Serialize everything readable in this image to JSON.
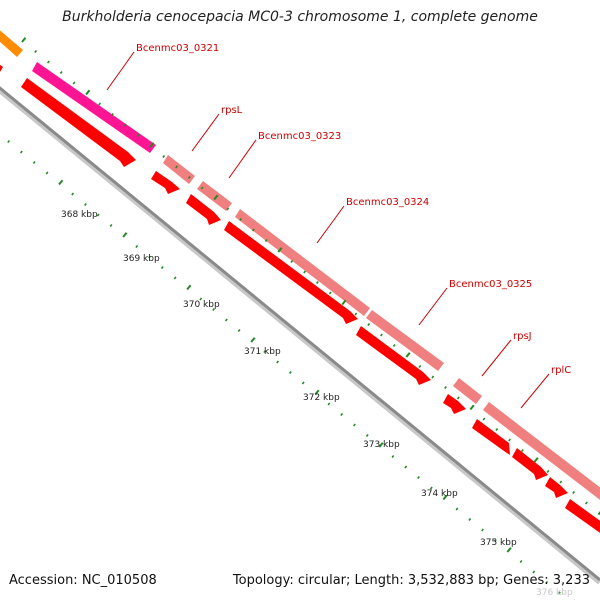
{
  "title": "Burkholderia cenocepacia MC0-3 chromosome 1, complete genome",
  "footer": {
    "accession": "Accession: NC_010508",
    "topology": "Topology: circular; Length: 3,532,883 bp; Genes: 3,233"
  },
  "gene_labels": [
    "Bcenmc03_0321",
    "rpsL",
    "Bcenmc03_0323",
    "Bcenmc03_0324",
    "Bcenmc03_0325",
    "rpsJ",
    "rplC"
  ],
  "ruler_labels": [
    "368 kbp",
    "369 kbp",
    "370 kbp",
    "371 kbp",
    "372 kbp",
    "373 kbp",
    "374 kbp",
    "375 kbp",
    "376 kbp"
  ],
  "colors": {
    "backbone": "#8a8a8a",
    "gene_forward": "#ff0000",
    "feature_pink": "#f08080",
    "feature_magenta": "#ff1493",
    "feature_orange": "#ff8c00",
    "label_line": "#cc0000",
    "tick": "#228b22"
  }
}
